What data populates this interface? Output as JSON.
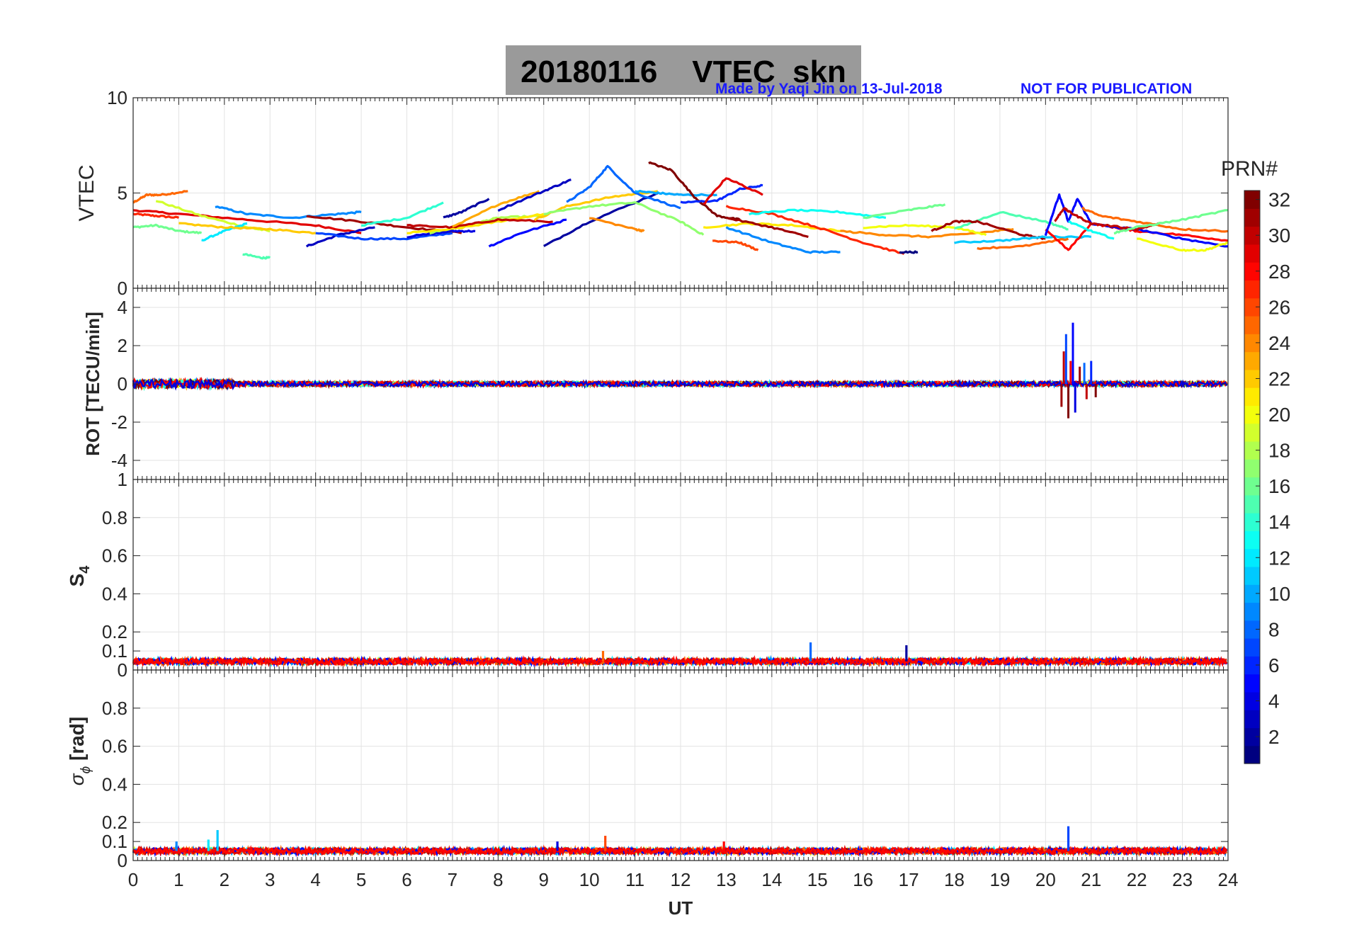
{
  "header": {
    "title": "20180116    VTEC  skn",
    "credit": "Made by Yaqi Jin on 13-Jul-2018",
    "notice": "NOT FOR PUBLICATION"
  },
  "colors": {
    "title_bg": "#9a9a9a",
    "credit_text": "#1a1aff",
    "grid": "#e3e3e3"
  },
  "chart_data": [
    {
      "type": "line",
      "panel": "VTEC",
      "ylabel": "VTEC",
      "ylim": [
        0,
        10
      ],
      "yticks": [
        "0",
        "5",
        "10"
      ],
      "xlim": [
        0,
        24
      ],
      "grid": true,
      "series": [
        {
          "prn": 27,
          "x": [
            0.0,
            0.5,
            1.0
          ],
          "y": [
            3.9,
            3.8,
            3.7
          ]
        },
        {
          "prn": 25,
          "x": [
            0.0,
            0.3,
            0.6,
            1.2
          ],
          "y": [
            4.5,
            4.9,
            4.9,
            5.1
          ]
        },
        {
          "prn": 16,
          "x": [
            0.0,
            0.5,
            1.0,
            1.5
          ],
          "y": [
            3.2,
            3.3,
            3.0,
            2.9
          ]
        },
        {
          "prn": 29,
          "x": [
            0.0,
            1.0,
            2.5,
            4.0,
            5.0
          ],
          "y": [
            4.1,
            3.9,
            3.6,
            3.3,
            2.9
          ]
        },
        {
          "prn": 19,
          "x": [
            0.5,
            1.5,
            2.5,
            3.0
          ],
          "y": [
            4.6,
            3.8,
            3.2,
            3.0
          ]
        },
        {
          "prn": 12,
          "x": [
            1.5,
            2.0,
            2.5
          ],
          "y": [
            2.5,
            3.0,
            3.4
          ]
        },
        {
          "prn": 9,
          "x": [
            1.8,
            2.5,
            3.5,
            4.5,
            5.0
          ],
          "y": [
            4.3,
            3.9,
            3.7,
            3.9,
            4.0
          ]
        },
        {
          "prn": 15,
          "x": [
            2.4,
            2.8,
            3.0
          ],
          "y": [
            1.8,
            1.6,
            1.6
          ]
        },
        {
          "prn": 22,
          "x": [
            1.0,
            2.0,
            3.0,
            4.0
          ],
          "y": [
            3.4,
            3.2,
            3.1,
            2.9
          ]
        },
        {
          "prn": 31,
          "x": [
            3.8,
            5.0,
            6.0,
            7.2
          ],
          "y": [
            3.8,
            3.5,
            3.2,
            2.9
          ]
        },
        {
          "prn": 3,
          "x": [
            3.8,
            4.5,
            5.3
          ],
          "y": [
            2.2,
            2.8,
            3.2
          ]
        },
        {
          "prn": 7,
          "x": [
            4.0,
            5.0,
            6.0,
            7.0
          ],
          "y": [
            2.9,
            2.6,
            2.6,
            2.9
          ]
        },
        {
          "prn": 14,
          "x": [
            5.0,
            6.0,
            6.8
          ],
          "y": [
            3.3,
            3.7,
            4.5
          ]
        },
        {
          "prn": 4,
          "x": [
            6.0,
            7.0,
            7.5
          ],
          "y": [
            2.7,
            3.0,
            3.0
          ]
        },
        {
          "prn": 2,
          "x": [
            6.8,
            7.2,
            7.8
          ],
          "y": [
            3.7,
            4.0,
            4.7
          ]
        },
        {
          "prn": 18,
          "x": [
            6.5,
            7.5,
            8.0,
            9.0
          ],
          "y": [
            2.9,
            3.4,
            3.7,
            3.8
          ]
        },
        {
          "prn": 21,
          "x": [
            6.0,
            7.0,
            8.0,
            9.0
          ],
          "y": [
            2.9,
            3.1,
            3.5,
            3.9
          ]
        },
        {
          "prn": 30,
          "x": [
            6.0,
            7.0,
            8.0,
            9.2
          ],
          "y": [
            3.3,
            3.2,
            3.6,
            3.5
          ]
        },
        {
          "prn": 23,
          "x": [
            7.0,
            8.0,
            8.9
          ],
          "y": [
            3.2,
            4.4,
            5.1
          ]
        },
        {
          "prn": 5,
          "x": [
            7.8,
            8.5,
            9.5
          ],
          "y": [
            2.2,
            2.9,
            3.6
          ]
        },
        {
          "prn": 3,
          "x": [
            8.0,
            9.0,
            9.6
          ],
          "y": [
            4.1,
            5.1,
            5.7
          ]
        },
        {
          "prn": 2,
          "x": [
            9.0,
            10.0,
            11.5
          ],
          "y": [
            2.2,
            3.5,
            5.0
          ]
        },
        {
          "prn": 22,
          "x": [
            8.8,
            9.5,
            10.5,
            11.5
          ],
          "y": [
            3.6,
            4.3,
            4.8,
            5.1
          ]
        },
        {
          "prn": 8,
          "x": [
            9.5,
            10.0,
            10.4,
            11.0,
            12.0
          ],
          "y": [
            4.5,
            5.3,
            6.4,
            5.0,
            4.2
          ]
        },
        {
          "prn": 17,
          "x": [
            9.0,
            10.0,
            11.0,
            12.0,
            12.5
          ],
          "y": [
            3.9,
            4.3,
            4.5,
            3.5,
            2.8
          ]
        },
        {
          "prn": 24,
          "x": [
            10.0,
            11.0,
            11.2
          ],
          "y": [
            3.7,
            3.1,
            3.0
          ]
        },
        {
          "prn": 10,
          "x": [
            11.0,
            11.5,
            12.0,
            12.8
          ],
          "y": [
            5.1,
            5.0,
            4.9,
            4.9
          ]
        },
        {
          "prn": 32,
          "x": [
            11.3,
            11.8,
            12.3,
            12.8,
            13.3
          ],
          "y": [
            6.6,
            6.2,
            4.8,
            3.8,
            3.6
          ]
        },
        {
          "prn": 6,
          "x": [
            12.0,
            12.8,
            13.3,
            13.8
          ],
          "y": [
            4.5,
            4.6,
            5.2,
            5.4
          ]
        },
        {
          "prn": 29,
          "x": [
            12.5,
            13.0,
            13.8
          ],
          "y": [
            4.4,
            5.8,
            4.9
          ]
        },
        {
          "prn": 21,
          "x": [
            12.5,
            13.5,
            14.5,
            15.5
          ],
          "y": [
            3.2,
            3.4,
            3.3,
            3.0
          ]
        },
        {
          "prn": 9,
          "x": [
            13.0,
            14.0,
            14.8,
            15.5
          ],
          "y": [
            3.2,
            2.4,
            1.9,
            1.9
          ]
        },
        {
          "prn": 27,
          "x": [
            13.0,
            14.0,
            15.0,
            16.0,
            16.9
          ],
          "y": [
            4.3,
            3.9,
            3.2,
            2.4,
            1.8
          ]
        },
        {
          "prn": 13,
          "x": [
            13.5,
            14.5,
            15.5,
            16.5
          ],
          "y": [
            3.9,
            4.1,
            4.0,
            3.7
          ]
        },
        {
          "prn": 26,
          "x": [
            12.7,
            13.3,
            13.7
          ],
          "y": [
            2.5,
            2.4,
            2.0
          ]
        },
        {
          "prn": 31,
          "x": [
            13.0,
            14.0,
            14.8
          ],
          "y": [
            3.7,
            3.2,
            2.7
          ]
        },
        {
          "prn": 16,
          "x": [
            16.0,
            17.0,
            17.8
          ],
          "y": [
            3.7,
            4.1,
            4.4
          ]
        },
        {
          "prn": 24,
          "x": [
            15.5,
            16.5,
            17.5,
            18.5,
            19.3
          ],
          "y": [
            3.0,
            2.8,
            2.7,
            2.9,
            3.1
          ]
        },
        {
          "prn": 20,
          "x": [
            16.0,
            17.0,
            18.0,
            18.7
          ],
          "y": [
            3.2,
            3.3,
            3.2,
            2.8
          ]
        },
        {
          "prn": 1,
          "x": [
            16.8,
            17.2
          ],
          "y": [
            1.9,
            1.9
          ]
        },
        {
          "prn": 15,
          "x": [
            18.0,
            19.0,
            20.0,
            20.5
          ],
          "y": [
            3.1,
            4.0,
            3.5,
            3.1
          ]
        },
        {
          "prn": 31,
          "x": [
            17.5,
            18.0,
            18.5,
            19.5,
            20.0
          ],
          "y": [
            3.0,
            3.5,
            3.5,
            2.8,
            2.6
          ]
        },
        {
          "prn": 11,
          "x": [
            18.0,
            19.0,
            20.0,
            21.0
          ],
          "y": [
            2.4,
            2.5,
            2.7,
            2.7
          ]
        },
        {
          "prn": 25,
          "x": [
            18.5,
            19.5,
            20.5
          ],
          "y": [
            2.1,
            2.2,
            2.6
          ]
        },
        {
          "prn": 28,
          "x": [
            20.0,
            20.5,
            21.0,
            21.5,
            22.0,
            23.0,
            24.0
          ],
          "y": [
            3.1,
            2.0,
            3.4,
            3.2,
            3.0,
            2.8,
            2.5
          ]
        },
        {
          "prn": 5,
          "x": [
            20.0,
            20.3,
            20.5,
            20.7,
            21.0,
            21.5,
            22.0,
            23.0,
            24.0
          ],
          "y": [
            2.8,
            4.9,
            3.5,
            4.7,
            3.4,
            3.2,
            3.1,
            2.6,
            2.2
          ]
        },
        {
          "prn": 30,
          "x": [
            20.2,
            20.4,
            20.6,
            21.0,
            22.0,
            22.5
          ],
          "y": [
            3.5,
            4.2,
            3.9,
            3.4,
            3.1,
            3.4
          ]
        },
        {
          "prn": 25,
          "x": [
            20.8,
            21.2,
            22.0,
            23.0,
            24.0
          ],
          "y": [
            4.2,
            3.8,
            3.5,
            3.1,
            3.0
          ]
        },
        {
          "prn": 16,
          "x": [
            21.5,
            22.0,
            23.0,
            24.0
          ],
          "y": [
            2.9,
            3.2,
            3.6,
            4.1
          ]
        },
        {
          "prn": 20,
          "x": [
            22.0,
            23.0,
            23.5,
            24.0
          ],
          "y": [
            2.6,
            2.0,
            2.0,
            2.4
          ]
        },
        {
          "prn": 13,
          "x": [
            20.5,
            21.0,
            21.5
          ],
          "y": [
            3.5,
            3.0,
            2.6
          ]
        }
      ]
    },
    {
      "type": "line",
      "panel": "ROT",
      "ylabel": "ROT [TECU/min]",
      "ylim": [
        -5,
        5
      ],
      "yticks": [
        "-4",
        "-2",
        "0",
        "2",
        "4"
      ],
      "xlim": [
        0,
        24
      ],
      "grid": true,
      "noise_level": 0.12,
      "spikes": [
        {
          "x": 20.35,
          "y": -1.2,
          "prn": 31
        },
        {
          "x": 20.4,
          "y": 1.7,
          "prn": 30
        },
        {
          "x": 20.45,
          "y": 2.6,
          "prn": 7
        },
        {
          "x": 20.5,
          "y": -1.8,
          "prn": 32
        },
        {
          "x": 20.55,
          "y": 1.2,
          "prn": 28
        },
        {
          "x": 20.6,
          "y": 3.2,
          "prn": 5
        },
        {
          "x": 20.65,
          "y": -1.5,
          "prn": 4
        },
        {
          "x": 20.75,
          "y": 0.9,
          "prn": 31
        },
        {
          "x": 20.85,
          "y": 1.1,
          "prn": 8
        },
        {
          "x": 20.9,
          "y": -0.8,
          "prn": 30
        },
        {
          "x": 21.0,
          "y": 1.2,
          "prn": 6
        },
        {
          "x": 21.1,
          "y": -0.7,
          "prn": 32
        }
      ]
    },
    {
      "type": "line",
      "panel": "S4",
      "ylabel": "S4",
      "ylim": [
        0,
        1
      ],
      "yticks": [
        "0",
        "0.1",
        "0.2",
        "0.4",
        "0.6",
        "0.8",
        "1"
      ],
      "xlim": [
        0,
        24
      ],
      "grid": true,
      "baseline": 0.045,
      "spikes": [
        {
          "x": 10.3,
          "y": 0.1,
          "prn": 25
        },
        {
          "x": 14.85,
          "y": 0.145,
          "prn": 8
        },
        {
          "x": 16.95,
          "y": 0.13,
          "prn": 2
        }
      ]
    },
    {
      "type": "line",
      "panel": "sigma_phi",
      "ylabel": "σ",
      "ylabel_sub": "ϕ",
      "ylabel_unit": "[rad]",
      "ylim": [
        0,
        1
      ],
      "yticks": [
        "0",
        "0.1",
        "0.2",
        "0.4",
        "0.6",
        "0.8"
      ],
      "xlim": [
        0,
        24
      ],
      "xlabel": "UT",
      "xticks": [
        "0",
        "1",
        "2",
        "3",
        "4",
        "5",
        "6",
        "7",
        "8",
        "9",
        "10",
        "11",
        "12",
        "13",
        "14",
        "15",
        "16",
        "17",
        "18",
        "19",
        "20",
        "21",
        "22",
        "23",
        "24"
      ],
      "grid": true,
      "baseline": 0.05,
      "spikes": [
        {
          "x": 0.95,
          "y": 0.1,
          "prn": 9
        },
        {
          "x": 1.65,
          "y": 0.11,
          "prn": 12
        },
        {
          "x": 1.85,
          "y": 0.16,
          "prn": 11
        },
        {
          "x": 9.3,
          "y": 0.1,
          "prn": 4
        },
        {
          "x": 10.35,
          "y": 0.13,
          "prn": 26
        },
        {
          "x": 12.95,
          "y": 0.1,
          "prn": 28
        },
        {
          "x": 20.5,
          "y": 0.18,
          "prn": 7
        }
      ]
    }
  ],
  "colorbar": {
    "label": "PRN#",
    "range": [
      1,
      32
    ],
    "ticks": [
      "2",
      "4",
      "6",
      "8",
      "10",
      "12",
      "14",
      "16",
      "18",
      "20",
      "22",
      "24",
      "26",
      "28",
      "30",
      "32"
    ],
    "colormap": "jet"
  }
}
